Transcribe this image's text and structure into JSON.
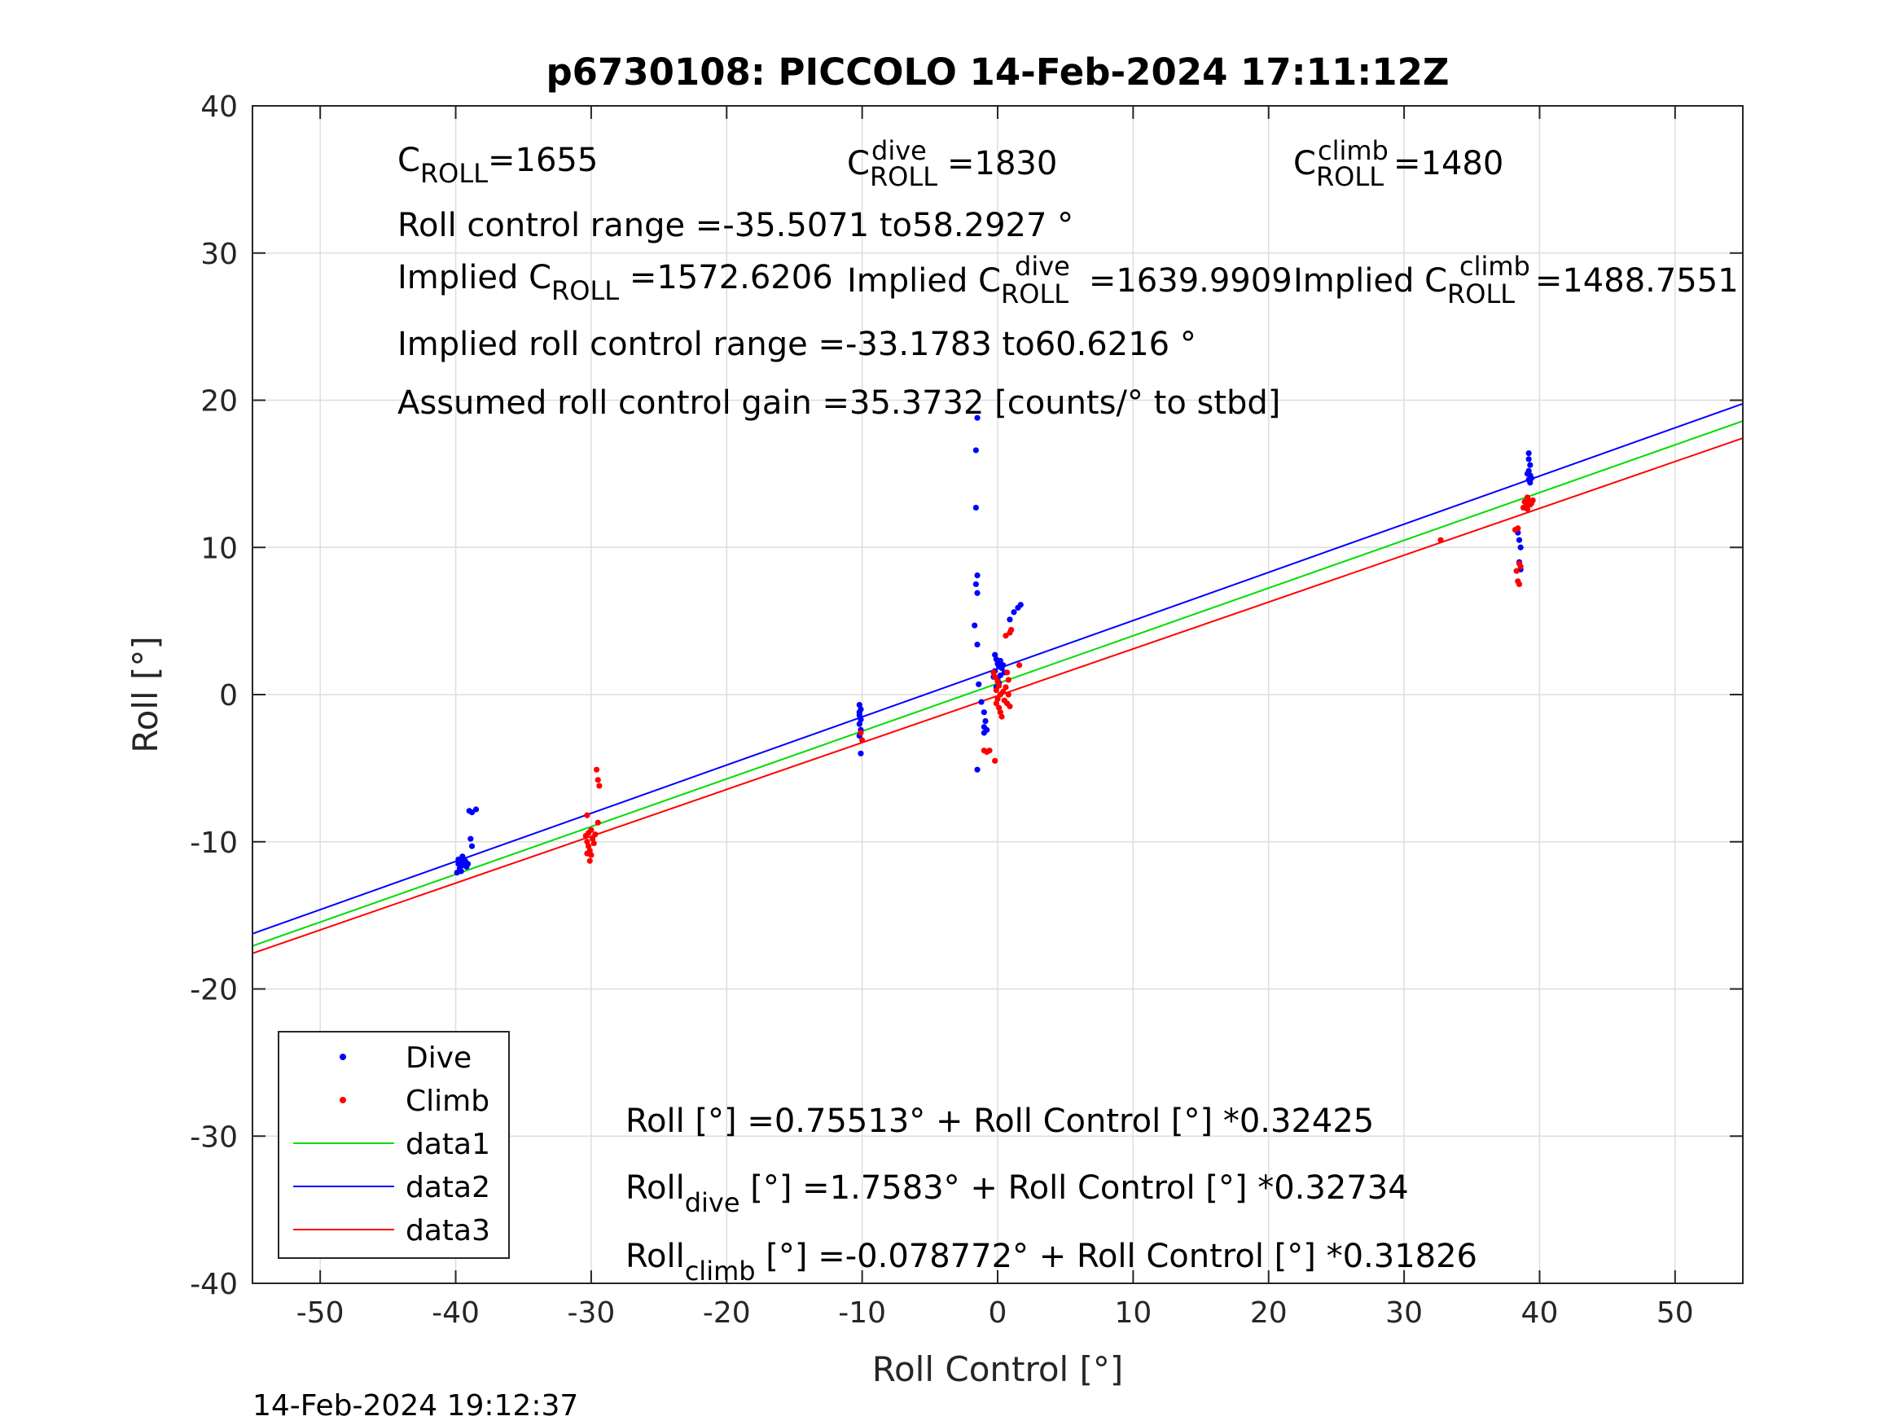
{
  "chart_data": {
    "type": "scatter",
    "title": "p6730108: PICCOLO 14-Feb-2024 17:11:12Z",
    "xlabel": "Roll Control [°]",
    "ylabel": "Roll [°]",
    "xlim": [
      -55,
      55
    ],
    "ylim": [
      -40,
      40
    ],
    "xticks": [
      -50,
      -40,
      -30,
      -20,
      -10,
      0,
      10,
      20,
      30,
      40,
      50
    ],
    "yticks": [
      -40,
      -30,
      -20,
      -10,
      0,
      10,
      20,
      30,
      40
    ],
    "grid": true,
    "legend_position": "bottom-left",
    "legend": [
      "Dive",
      "Climb",
      "data1",
      "data2",
      "data3"
    ],
    "colors": {
      "dive": "#0000ff",
      "climb": "#ff0000",
      "data1": "#00dd00",
      "data2": "#0000ff",
      "data3": "#ff0000"
    },
    "lines": [
      {
        "name": "data1",
        "intercept": 0.75513,
        "slope": 0.32425
      },
      {
        "name": "data2",
        "intercept": 1.7583,
        "slope": 0.32734
      },
      {
        "name": "data3",
        "intercept": -0.078772,
        "slope": 0.31826
      }
    ],
    "dive_points": [
      [
        -39.8,
        -11.2
      ],
      [
        -39.8,
        -11.5
      ],
      [
        -39.7,
        -11.8
      ],
      [
        -39.9,
        -12.1
      ],
      [
        -39.6,
        -11.4
      ],
      [
        -39.5,
        -11.0
      ],
      [
        -39.7,
        -11.9
      ],
      [
        -39.4,
        -11.6
      ],
      [
        -39.3,
        -11.3
      ],
      [
        -39.2,
        -11.7
      ],
      [
        -39.6,
        -12.0
      ],
      [
        -39.1,
        -11.5
      ],
      [
        -39.0,
        -7.9
      ],
      [
        -38.8,
        -8.0
      ],
      [
        -38.5,
        -7.8
      ],
      [
        -38.9,
        -9.8
      ],
      [
        -38.8,
        -10.3
      ],
      [
        -10.2,
        -0.7
      ],
      [
        -10.1,
        -1.0
      ],
      [
        -10.2,
        -1.4
      ],
      [
        -10.1,
        -1.7
      ],
      [
        -10.2,
        -2.0
      ],
      [
        -10.1,
        -2.4
      ],
      [
        -10.2,
        -2.8
      ],
      [
        -10.1,
        -4.0
      ],
      [
        -10.2,
        -1.2
      ],
      [
        -1.5,
        18.8
      ],
      [
        -1.6,
        16.6
      ],
      [
        -1.6,
        12.7
      ],
      [
        -1.5,
        8.1
      ],
      [
        -1.6,
        7.5
      ],
      [
        -1.5,
        6.9
      ],
      [
        -1.7,
        4.7
      ],
      [
        -1.5,
        3.4
      ],
      [
        -1.4,
        0.7
      ],
      [
        -1.2,
        -0.5
      ],
      [
        -1.0,
        -1.2
      ],
      [
        -0.9,
        -1.8
      ],
      [
        -1.0,
        -2.2
      ],
      [
        -0.8,
        -2.4
      ],
      [
        -1.0,
        -2.6
      ],
      [
        -1.5,
        -5.1
      ],
      [
        -0.2,
        2.7
      ],
      [
        -0.1,
        2.4
      ],
      [
        0.0,
        2.1
      ],
      [
        0.1,
        1.9
      ],
      [
        -0.2,
        1.6
      ],
      [
        0.2,
        1.3
      ],
      [
        0.0,
        1.0
      ],
      [
        0.3,
        1.8
      ],
      [
        0.4,
        2.0
      ],
      [
        0.2,
        2.3
      ],
      [
        -0.3,
        1.2
      ],
      [
        0.1,
        0.8
      ],
      [
        -0.1,
        0.5
      ],
      [
        0.5,
        1.5
      ],
      [
        0.9,
        5.1
      ],
      [
        1.2,
        5.6
      ],
      [
        1.5,
        5.9
      ],
      [
        1.7,
        6.1
      ],
      [
        38.5,
        10.5
      ],
      [
        38.6,
        10.0
      ],
      [
        38.4,
        11.0
      ],
      [
        38.5,
        9.0
      ],
      [
        38.6,
        8.5
      ],
      [
        39.2,
        16.4
      ],
      [
        39.2,
        16.0
      ],
      [
        39.3,
        15.6
      ],
      [
        39.2,
        15.2
      ],
      [
        39.3,
        14.9
      ],
      [
        39.2,
        14.6
      ],
      [
        39.3,
        14.4
      ],
      [
        39.1,
        15.0
      ],
      [
        39.4,
        14.7
      ]
    ],
    "climb_points": [
      [
        -30.4,
        -9.6
      ],
      [
        -30.3,
        -10.0
      ],
      [
        -30.2,
        -10.3
      ],
      [
        -30.1,
        -10.6
      ],
      [
        -30.0,
        -10.9
      ],
      [
        -29.9,
        -9.8
      ],
      [
        -30.2,
        -9.4
      ],
      [
        -30.3,
        -10.8
      ],
      [
        -30.1,
        -11.3
      ],
      [
        -29.8,
        -10.1
      ],
      [
        -30.0,
        -9.2
      ],
      [
        -29.7,
        -9.5
      ],
      [
        -30.3,
        -8.2
      ],
      [
        -29.6,
        -5.1
      ],
      [
        -29.5,
        -5.8
      ],
      [
        -29.4,
        -6.2
      ],
      [
        -29.5,
        -8.7
      ],
      [
        -10.0,
        -3.1
      ],
      [
        -10.1,
        -2.6
      ],
      [
        -1.0,
        -3.8
      ],
      [
        -0.8,
        -3.9
      ],
      [
        -0.6,
        -3.8
      ],
      [
        -0.2,
        -4.5
      ],
      [
        -0.3,
        1.5
      ],
      [
        -0.2,
        1.2
      ],
      [
        0.0,
        0.9
      ],
      [
        0.1,
        0.6
      ],
      [
        -0.1,
        0.3
      ],
      [
        0.2,
        0.0
      ],
      [
        0.0,
        -0.3
      ],
      [
        -0.1,
        -0.6
      ],
      [
        0.1,
        -0.9
      ],
      [
        0.2,
        -1.2
      ],
      [
        0.3,
        -1.5
      ],
      [
        0.4,
        0.2
      ],
      [
        0.5,
        -0.4
      ],
      [
        0.6,
        0.5
      ],
      [
        0.7,
        -0.6
      ],
      [
        0.8,
        1.0
      ],
      [
        0.9,
        -0.8
      ],
      [
        0.7,
        1.5
      ],
      [
        0.8,
        0.0
      ],
      [
        0.6,
        4.0
      ],
      [
        0.9,
        4.2
      ],
      [
        1.0,
        4.4
      ],
      [
        1.6,
        2.0
      ],
      [
        32.7,
        10.5
      ],
      [
        38.2,
        11.2
      ],
      [
        38.4,
        11.3
      ],
      [
        38.5,
        8.9
      ],
      [
        38.3,
        8.4
      ],
      [
        38.6,
        8.7
      ],
      [
        38.4,
        7.7
      ],
      [
        38.5,
        7.5
      ],
      [
        38.9,
        13.1
      ],
      [
        39.0,
        12.8
      ],
      [
        39.1,
        12.6
      ],
      [
        39.2,
        13.2
      ],
      [
        39.3,
        12.9
      ],
      [
        39.4,
        13.0
      ],
      [
        39.1,
        13.4
      ],
      [
        38.8,
        12.7
      ],
      [
        39.5,
        13.2
      ],
      [
        39.0,
        13.0
      ]
    ],
    "annotations": {
      "c_roll": {
        "main": "C",
        "sub": "ROLL",
        "rest": "=1655"
      },
      "c_roll_dive": {
        "main": "C",
        "sub": "ROLL",
        "sup": "dive",
        "rest": "=1830"
      },
      "c_roll_climb": {
        "main": "C",
        "sub": "ROLL",
        "sup": "climb",
        "rest": "=1480"
      },
      "roll_control_range": "Roll control range =-35.5071 to58.2927 °",
      "implied_c_roll": {
        "main": "Implied C",
        "sub": "ROLL",
        "rest": " =1572.6206"
      },
      "implied_c_roll_dive": {
        "main": "Implied C",
        "sub": "ROLL",
        "sup": "dive",
        "rest": " =1639.9909"
      },
      "implied_c_roll_climb": {
        "main": "Implied C",
        "sub": "ROLL",
        "sup": "climb",
        "rest": " =1488.7551"
      },
      "implied_roll_control_range": "Implied roll control range =-33.1783 to60.6216 °",
      "assumed_gain": "Assumed roll control gain =35.3732 [counts/° to stbd]",
      "fit_all": "Roll [°] =0.75513° + Roll Control [°] *0.32425",
      "fit_dive": {
        "main": "Roll",
        "sub": "dive",
        "rest": " [°] =1.7583° + Roll Control [°] *0.32734"
      },
      "fit_climb": {
        "main": "Roll",
        "sub": "climb",
        "rest": " [°] =-0.078772° + Roll Control [°] *0.31826"
      }
    },
    "timestamp": "14-Feb-2024 19:12:37"
  }
}
